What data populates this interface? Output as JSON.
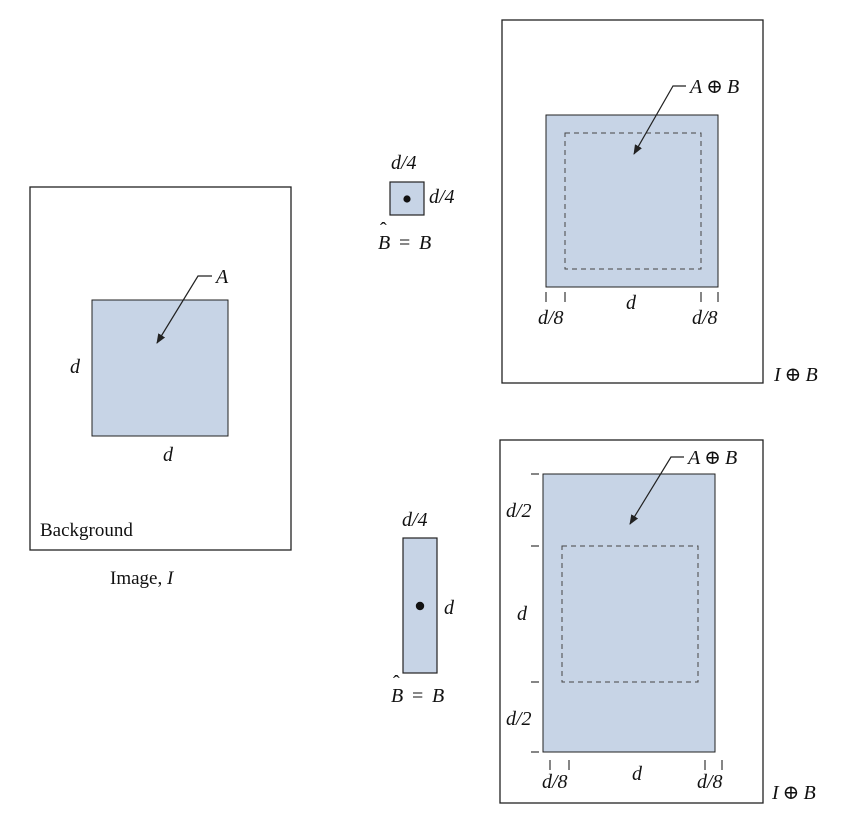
{
  "colors": {
    "fill": "#c7d4e6",
    "stroke": "#222222",
    "background": "#ffffff"
  },
  "image_panel": {
    "set_label": "A",
    "height_label": "d",
    "width_label": "d",
    "background_label": "Background",
    "caption_text": "Image, ",
    "caption_var": "I"
  },
  "se_square": {
    "top_label": "d/4",
    "side_label": "d/4",
    "caption_b": "B",
    "caption_eq": "=",
    "caption_rhs": "B"
  },
  "se_rect": {
    "top_label": "d/4",
    "side_label": "d",
    "caption_b": "B",
    "caption_eq": "=",
    "caption_rhs": "B"
  },
  "result_top": {
    "set_lhs": "A",
    "op": "⊕",
    "set_rhs": "B",
    "left_margin": "d/8",
    "width_label": "d",
    "right_margin": "d/8",
    "caption_lhs": "I",
    "caption_op": "⊕",
    "caption_rhs": "B"
  },
  "result_bottom": {
    "set_lhs": "A",
    "op": "⊕",
    "set_rhs": "B",
    "top_margin": "d/2",
    "height_label": "d",
    "bottom_margin": "d/2",
    "left_margin": "d/8",
    "width_label": "d",
    "right_margin": "d/8",
    "caption_lhs": "I",
    "caption_op": "⊕",
    "caption_rhs": "B"
  }
}
